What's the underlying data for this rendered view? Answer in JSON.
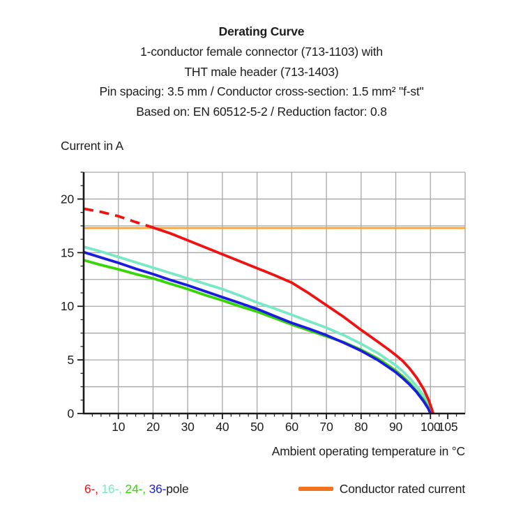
{
  "header": {
    "title": "Derating Curve",
    "subtitle_lines": [
      "1-conductor female connector (713-1103) with",
      "THT male header (713-1403)",
      "Pin spacing: 3.5 mm / Conductor cross-section: 1.5 mm² \"f-st\"",
      "Based on: EN 60512-5-2 / Reduction factor: 0.8"
    ]
  },
  "chart_data": {
    "type": "line",
    "title": "Derating Curve",
    "ylabel": "Current in A",
    "xlabel": "Ambient operating temperature in °C",
    "xlim": [
      0,
      110
    ],
    "ylim": [
      0,
      22.5
    ],
    "x_major_ticks": [
      10,
      20,
      30,
      40,
      50,
      60,
      70,
      80,
      90,
      100,
      105
    ],
    "x_minor_step": 2.5,
    "x_grid_step": 10,
    "y_major_ticks": [
      0,
      5,
      10,
      15,
      20
    ],
    "y_minor_step": 1.25,
    "y_grid_step": 2.5,
    "grid_on": true,
    "grid_color": "#a6a6a6",
    "axis_color": "#1a1a1a",
    "reference_line": {
      "name": "Conductor rated current",
      "color": "#f5a83c",
      "y": 17.3
    },
    "series": [
      {
        "name": "16-pole",
        "color": "#79e8c6",
        "segments": [
          {
            "dash": null,
            "points": [
              [
                0,
                15.55
              ],
              [
                5,
                15.1
              ],
              [
                10,
                14.6
              ],
              [
                15,
                14.1
              ],
              [
                20,
                13.6
              ],
              [
                25,
                13.1
              ],
              [
                30,
                12.6
              ],
              [
                35,
                12.1
              ],
              [
                40,
                11.6
              ],
              [
                45,
                11.0
              ],
              [
                50,
                10.35
              ],
              [
                55,
                9.8
              ],
              [
                60,
                9.2
              ],
              [
                65,
                8.6
              ],
              [
                70,
                8.0
              ],
              [
                75,
                7.3
              ],
              [
                80,
                6.5
              ],
              [
                85,
                5.6
              ],
              [
                88,
                4.95
              ],
              [
                90,
                4.5
              ],
              [
                92,
                3.95
              ],
              [
                94,
                3.3
              ],
              [
                96,
                2.55
              ],
              [
                98,
                1.7
              ],
              [
                99.5,
                0.8
              ],
              [
                100.3,
                0
              ]
            ]
          }
        ]
      },
      {
        "name": "24-pole",
        "color": "#38d606",
        "segments": [
          {
            "dash": null,
            "points": [
              [
                0,
                14.3
              ],
              [
                5,
                13.85
              ],
              [
                10,
                13.45
              ],
              [
                15,
                13.0
              ],
              [
                20,
                12.6
              ],
              [
                25,
                12.1
              ],
              [
                30,
                11.6
              ],
              [
                35,
                11.05
              ],
              [
                40,
                10.55
              ],
              [
                45,
                10.0
              ],
              [
                50,
                9.5
              ],
              [
                55,
                8.9
              ],
              [
                60,
                8.3
              ],
              [
                65,
                7.75
              ],
              [
                70,
                7.2
              ],
              [
                75,
                6.65
              ],
              [
                80,
                5.95
              ],
              [
                85,
                5.1
              ],
              [
                88,
                4.45
              ],
              [
                90,
                4.0
              ],
              [
                92,
                3.45
              ],
              [
                94,
                2.85
              ],
              [
                96,
                2.1
              ],
              [
                98,
                1.3
              ],
              [
                99.3,
                0.6
              ],
              [
                100,
                0
              ]
            ]
          }
        ]
      },
      {
        "name": "36-pole",
        "color": "#1c1ce0",
        "segments": [
          {
            "dash": null,
            "points": [
              [
                0,
                15.05
              ],
              [
                5,
                14.55
              ],
              [
                10,
                14.05
              ],
              [
                15,
                13.5
              ],
              [
                20,
                13.0
              ],
              [
                25,
                12.45
              ],
              [
                30,
                11.95
              ],
              [
                35,
                11.4
              ],
              [
                40,
                10.85
              ],
              [
                45,
                10.3
              ],
              [
                50,
                9.75
              ],
              [
                55,
                9.1
              ],
              [
                60,
                8.45
              ],
              [
                65,
                7.9
              ],
              [
                70,
                7.3
              ],
              [
                75,
                6.6
              ],
              [
                80,
                5.85
              ],
              [
                85,
                4.95
              ],
              [
                88,
                4.3
              ],
              [
                90,
                3.85
              ],
              [
                92,
                3.3
              ],
              [
                94,
                2.7
              ],
              [
                96,
                2.0
              ],
              [
                98,
                1.15
              ],
              [
                99.3,
                0.5
              ],
              [
                100,
                0
              ]
            ]
          }
        ]
      },
      {
        "name": "6-pole",
        "color": "#ee1212",
        "segments": [
          {
            "dash": "14 9",
            "points": [
              [
                0,
                19.1
              ],
              [
                5,
                18.8
              ],
              [
                10,
                18.4
              ],
              [
                15,
                17.85
              ],
              [
                19,
                17.45
              ]
            ]
          },
          {
            "dash": null,
            "points": [
              [
                19,
                17.45
              ],
              [
                25,
                16.8
              ],
              [
                30,
                16.15
              ],
              [
                35,
                15.5
              ],
              [
                40,
                14.85
              ],
              [
                45,
                14.2
              ],
              [
                50,
                13.55
              ],
              [
                55,
                12.9
              ],
              [
                60,
                12.2
              ],
              [
                65,
                11.2
              ],
              [
                70,
                10.1
              ],
              [
                75,
                9.0
              ],
              [
                80,
                7.8
              ],
              [
                85,
                6.65
              ],
              [
                88,
                5.95
              ],
              [
                90,
                5.45
              ],
              [
                92,
                4.9
              ],
              [
                94,
                4.2
              ],
              [
                96,
                3.35
              ],
              [
                98,
                2.3
              ],
              [
                99.5,
                1.25
              ],
              [
                100.8,
                0
              ]
            ]
          }
        ]
      }
    ]
  },
  "legend": {
    "poles": [
      {
        "label": "6-, ",
        "color": "#ee1212"
      },
      {
        "label": "16-, ",
        "color": "#79e8c6"
      },
      {
        "label": "24-, ",
        "color": "#38d606"
      },
      {
        "label": "36-",
        "color": "#1c1ce0"
      }
    ],
    "poles_suffix": "pole",
    "rated": {
      "label": "Conductor rated current",
      "swatch_color": "#f2731d"
    }
  }
}
